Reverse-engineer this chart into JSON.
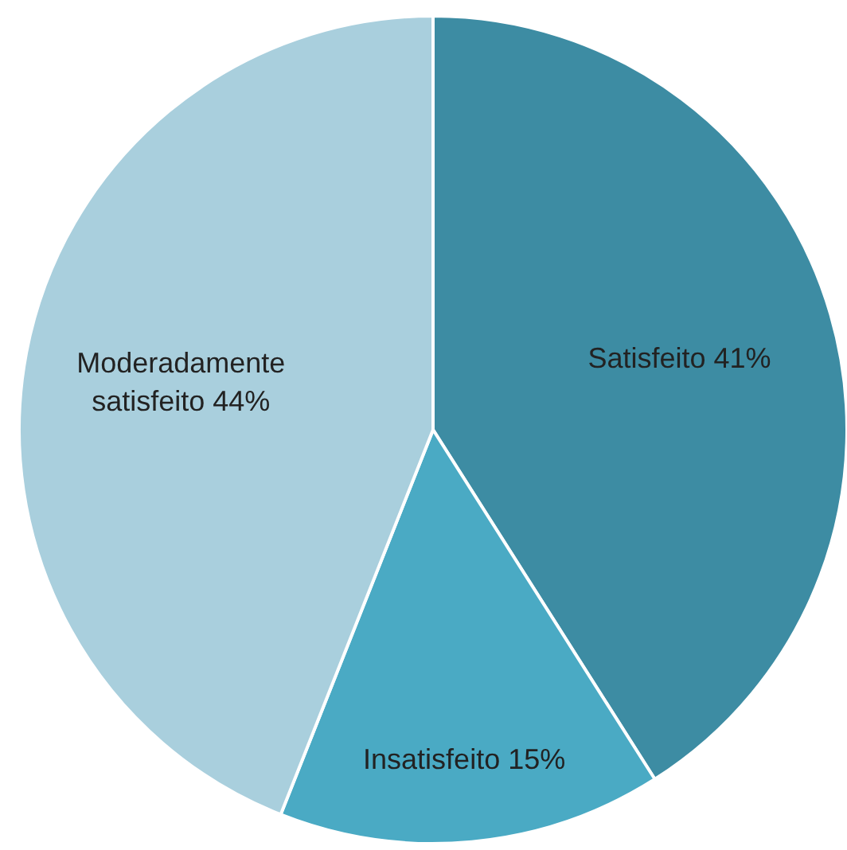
{
  "chart_data": {
    "type": "pie",
    "categories": [
      "Satisfeito",
      "Insatisfeito",
      "Moderadamente satisfeito"
    ],
    "values": [
      41,
      15,
      44
    ],
    "colors": [
      "#3d8ca3",
      "#4aaac4",
      "#a9cfdd"
    ],
    "value_labels": [
      "41%",
      "15%",
      "44%"
    ],
    "legend": false
  }
}
